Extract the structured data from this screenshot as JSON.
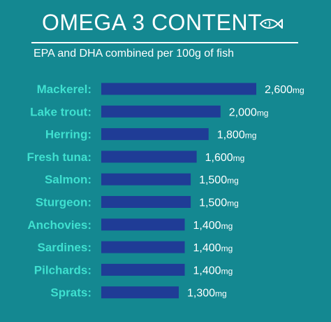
{
  "header": {
    "title": "OMEGA 3 CONTENT",
    "subtitle": "EPA and DHA combined per 100g of fish",
    "icon": "fish-icon"
  },
  "colors": {
    "background": "#148891",
    "bar": "#1f3c96",
    "label": "#3fe0d0",
    "text": "#ffffff"
  },
  "chart_data": {
    "type": "bar",
    "orientation": "horizontal",
    "title": "OMEGA 3 CONTENT",
    "subtitle": "EPA and DHA combined per 100g of fish",
    "categories": [
      "Mackerel:",
      "Lake trout:",
      "Herring:",
      "Fresh tuna:",
      "Salmon:",
      "Sturgeon:",
      "Anchovies:",
      "Sardines:",
      "Pilchards:",
      "Sprats:"
    ],
    "values": [
      2600,
      2000,
      1800,
      1600,
      1500,
      1500,
      1400,
      1400,
      1400,
      1300
    ],
    "value_labels": [
      "2,600",
      "2,000",
      "1,800",
      "1,600",
      "1,500",
      "1,500",
      "1,400",
      "1,400",
      "1,400",
      "1,300"
    ],
    "unit": "mg",
    "grid": false,
    "legend": "none"
  }
}
